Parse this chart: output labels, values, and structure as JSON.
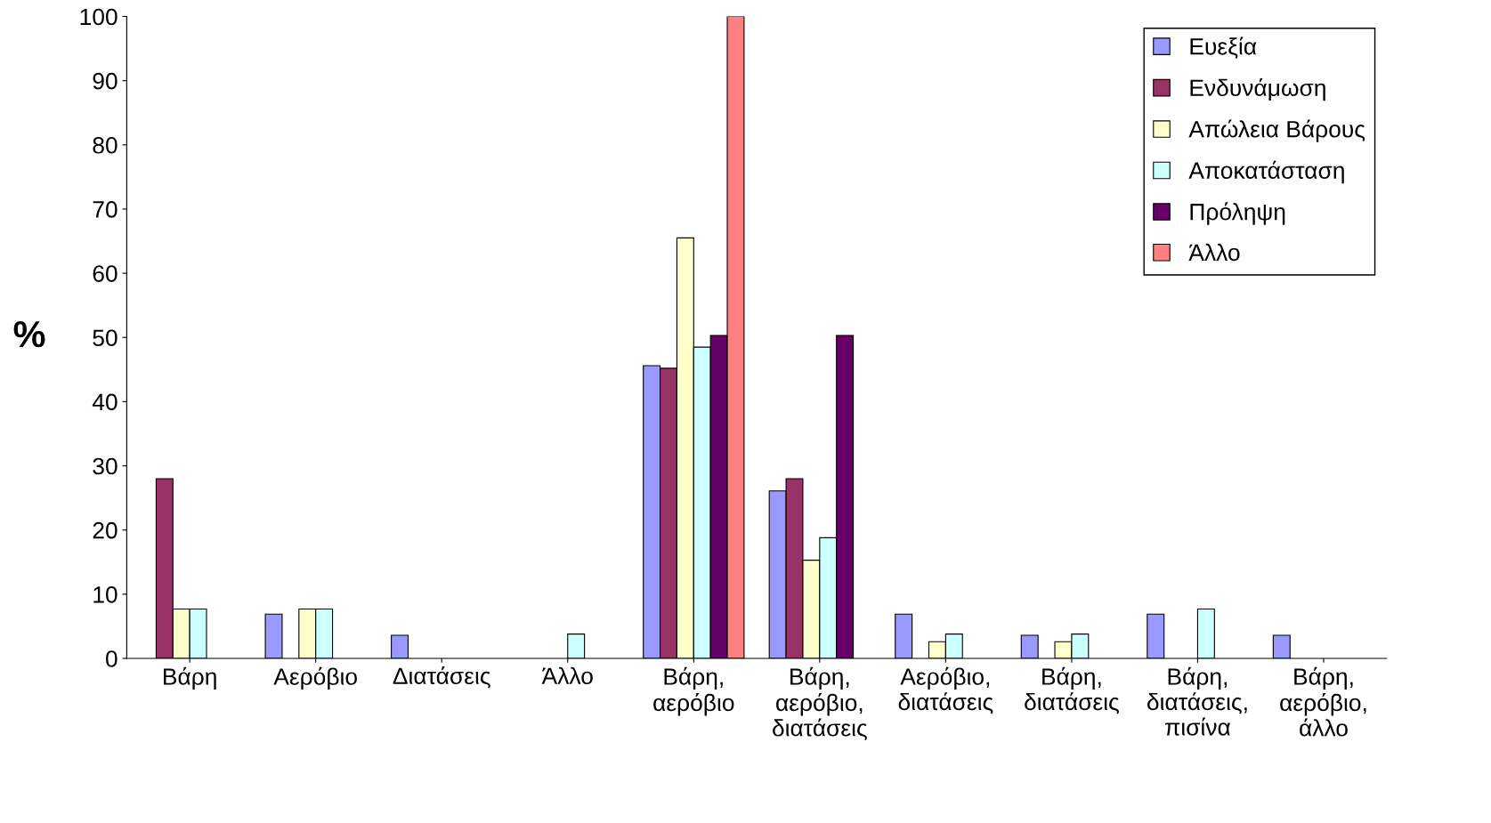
{
  "chart_data": {
    "type": "bar",
    "ylabel": "%",
    "categories": [
      "Βάρη",
      "Αερόβιο",
      "Διατάσεις",
      "Άλλο",
      "Βάρη,\nαερόβιο",
      "Βάρη,\nαερόβιο,\nδιατάσεις",
      "Αερόβιο,\nδιατάσεις",
      "Βάρη,\nδιατάσεις",
      "Βάρη,\nδιατάσεις,\nπισίνα",
      "Βάρη,\nαερόβιο,\nάλλο"
    ],
    "series": [
      {
        "name": "Ευεξία",
        "color": "#9999ff",
        "values": [
          null,
          6.9,
          3.6,
          null,
          45.6,
          26.1,
          6.9,
          3.6,
          6.9,
          3.6
        ]
      },
      {
        "name": "Ενδυνάμωση",
        "color": "#993366",
        "values": [
          28,
          null,
          null,
          null,
          45.2,
          28,
          null,
          null,
          null,
          null
        ]
      },
      {
        "name": "Απώλεια Βάρους",
        "color": "#ffffcc",
        "values": [
          7.7,
          7.7,
          null,
          null,
          65.5,
          15.3,
          2.6,
          2.6,
          null,
          null
        ]
      },
      {
        "name": "Αποκατάσταση",
        "color": "#ccffff",
        "values": [
          7.7,
          7.7,
          null,
          3.8,
          48.5,
          18.8,
          3.8,
          3.8,
          7.7,
          null
        ]
      },
      {
        "name": "Πρόληψη",
        "color": "#660066",
        "values": [
          null,
          null,
          null,
          null,
          50.3,
          50.3,
          null,
          null,
          null,
          null
        ]
      },
      {
        "name": "Άλλο",
        "color": "#ff8080",
        "values": [
          null,
          null,
          null,
          null,
          100,
          null,
          null,
          null,
          null,
          null
        ]
      }
    ],
    "ylim": [
      0,
      100
    ],
    "yticks": [
      0,
      10,
      20,
      30,
      40,
      50,
      60,
      70,
      80,
      90,
      100
    ],
    "grid": false,
    "legend": "top right"
  }
}
